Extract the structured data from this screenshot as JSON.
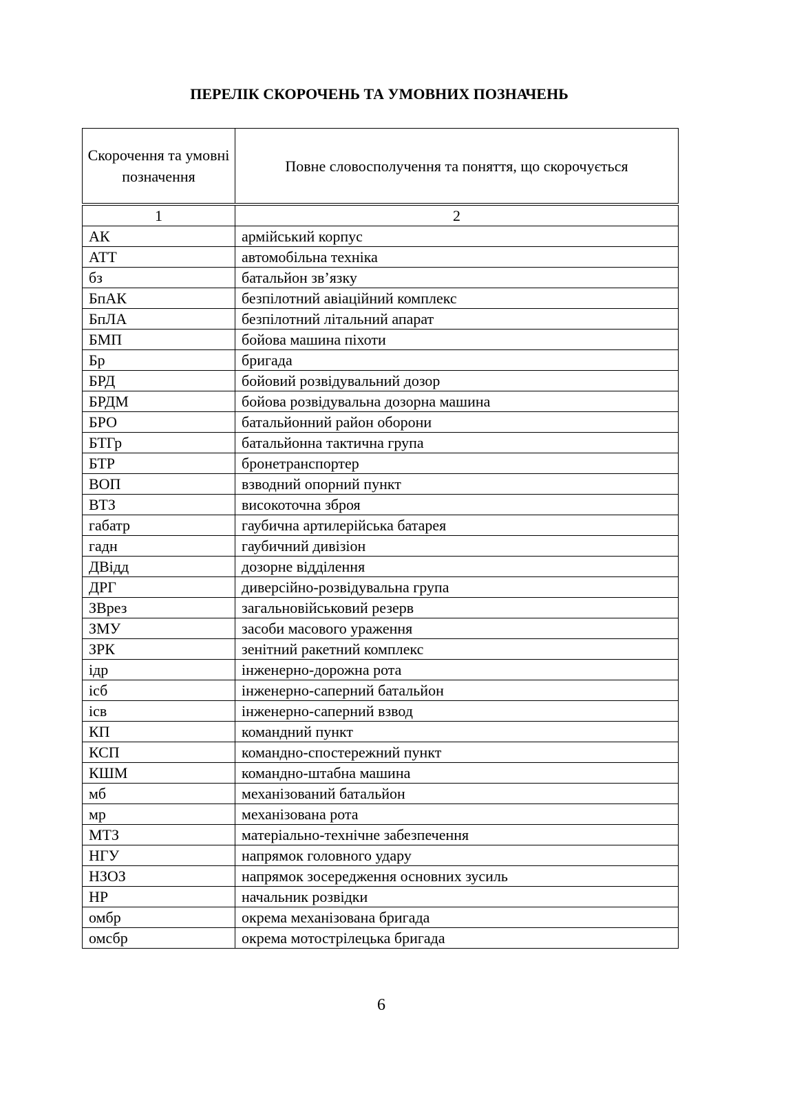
{
  "title": "ПЕРЕЛІК СКОРОЧЕНЬ ТА УМОВНИХ ПОЗНАЧЕНЬ",
  "table": {
    "headers": [
      "Скорочення та умовні позначення",
      "Повне словосполучення та поняття, що скорочується"
    ],
    "column_numbers": [
      "1",
      "2"
    ],
    "rows": [
      [
        "АК",
        "армійський корпус"
      ],
      [
        "АТТ",
        "автомобільна техніка"
      ],
      [
        "бз",
        "батальйон зв’язку"
      ],
      [
        "БпАК",
        "безпілотний авіаційний комплекс"
      ],
      [
        "БпЛА",
        "безпілотний літальний апарат"
      ],
      [
        "БМП",
        "бойова машина піхоти"
      ],
      [
        "Бр",
        "бригада"
      ],
      [
        "БРД",
        "бойовий розвідувальний дозор"
      ],
      [
        "БРДМ",
        "бойова розвідувальна дозорна машина"
      ],
      [
        "БРО",
        "батальйонний район оборони"
      ],
      [
        "БТГр",
        "батальйонна тактична група"
      ],
      [
        "БТР",
        "бронетранспортер"
      ],
      [
        "ВОП",
        "взводний опорний пункт"
      ],
      [
        "ВТЗ",
        "високоточна зброя"
      ],
      [
        "габатр",
        "гаубична артилерійська батарея"
      ],
      [
        "гадн",
        "гаубичний дивізіон"
      ],
      [
        "ДВідд",
        "дозорне відділення"
      ],
      [
        "ДРГ",
        "диверсійно-розвідувальна група"
      ],
      [
        "ЗВрез",
        "загальновійськовий резерв"
      ],
      [
        "ЗМУ",
        "засоби масового ураження"
      ],
      [
        "ЗРК",
        "зенітний ракетний комплекс"
      ],
      [
        "ідр",
        "інженерно-дорожна рота"
      ],
      [
        "ісб",
        "інженерно-саперний батальйон"
      ],
      [
        "ісв",
        "інженерно-саперний взвод"
      ],
      [
        "КП",
        "командний пункт"
      ],
      [
        "КСП",
        "командно-спостережний пункт"
      ],
      [
        "КШМ",
        "командно-штабна машина"
      ],
      [
        "мб",
        "механізований батальйон"
      ],
      [
        "мр",
        "механізована рота"
      ],
      [
        "МТЗ",
        "матеріально-технічне забезпечення"
      ],
      [
        "НГУ",
        "напрямок головного удару"
      ],
      [
        "НЗОЗ",
        "напрямок зосередження основних зусиль"
      ],
      [
        "НР",
        "начальник розвідки"
      ],
      [
        "омбр",
        "окрема механізована бригада"
      ],
      [
        "омсбр",
        "окрема мотострілецька бригада"
      ]
    ]
  },
  "page_number": "6"
}
